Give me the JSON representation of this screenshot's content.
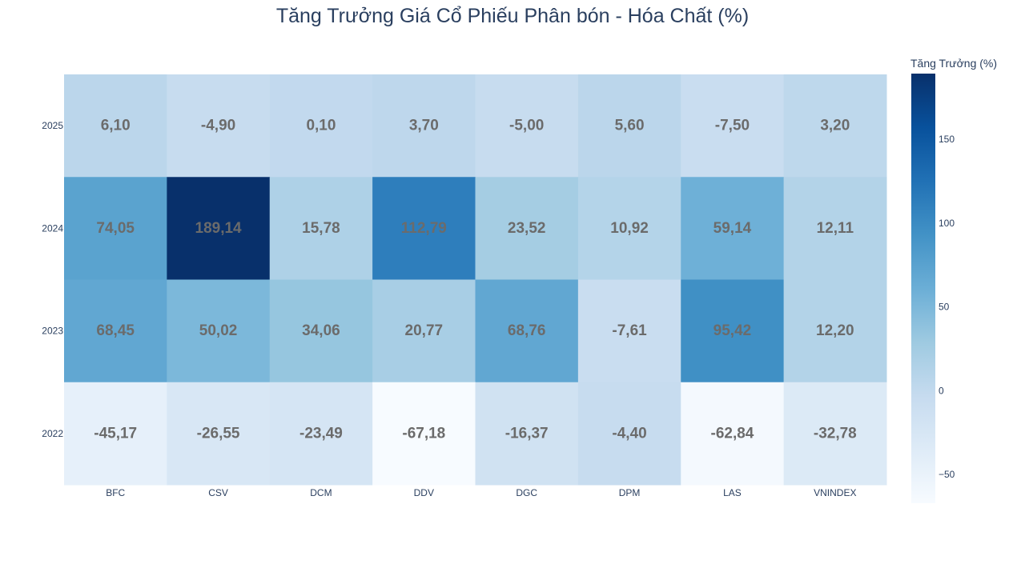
{
  "chart_data": {
    "type": "heatmap",
    "title": "Tăng Trưởng Giá Cổ Phiếu Phân bón - Hóa Chất (%)",
    "x": [
      "BFC",
      "CSV",
      "DCM",
      "DDV",
      "DGC",
      "DPM",
      "LAS",
      "VNINDEX"
    ],
    "y": [
      "2025",
      "2024",
      "2023",
      "2022"
    ],
    "z": [
      [
        6.1,
        -4.9,
        0.1,
        3.7,
        -5.0,
        5.6,
        -7.5,
        3.2
      ],
      [
        74.05,
        189.14,
        15.78,
        112.79,
        23.52,
        10.92,
        59.14,
        12.11
      ],
      [
        68.45,
        50.02,
        34.06,
        20.77,
        68.76,
        -7.61,
        95.42,
        12.2
      ],
      [
        -45.17,
        -26.55,
        -23.49,
        -67.18,
        -16.37,
        -4.4,
        -62.84,
        -32.78
      ]
    ],
    "text": [
      [
        "6,10",
        "-4,90",
        "0,10",
        "3,70",
        "-5,00",
        "5,60",
        "-7,50",
        "3,20"
      ],
      [
        "74,05",
        "189,14",
        "15,78",
        "112,79",
        "23,52",
        "10,92",
        "59,14",
        "12,11"
      ],
      [
        "68,45",
        "50,02",
        "34,06",
        "20,77",
        "68,76",
        "-7,61",
        "95,42",
        "12,20"
      ],
      [
        "-45,17",
        "-26,55",
        "-23,49",
        "-67,18",
        "-16,37",
        "-4,40",
        "-62,84",
        "-32,78"
      ]
    ],
    "colorscale": "Blues",
    "zmin": -67.18,
    "zmax": 189.14,
    "colorbar": {
      "title": "Tăng Trưởng (%)",
      "ticks": [
        150,
        100,
        50,
        0,
        -50
      ],
      "tick_labels": [
        "150",
        "100",
        "50",
        "0",
        "−50"
      ]
    },
    "label_color": "#6b6b6b"
  }
}
